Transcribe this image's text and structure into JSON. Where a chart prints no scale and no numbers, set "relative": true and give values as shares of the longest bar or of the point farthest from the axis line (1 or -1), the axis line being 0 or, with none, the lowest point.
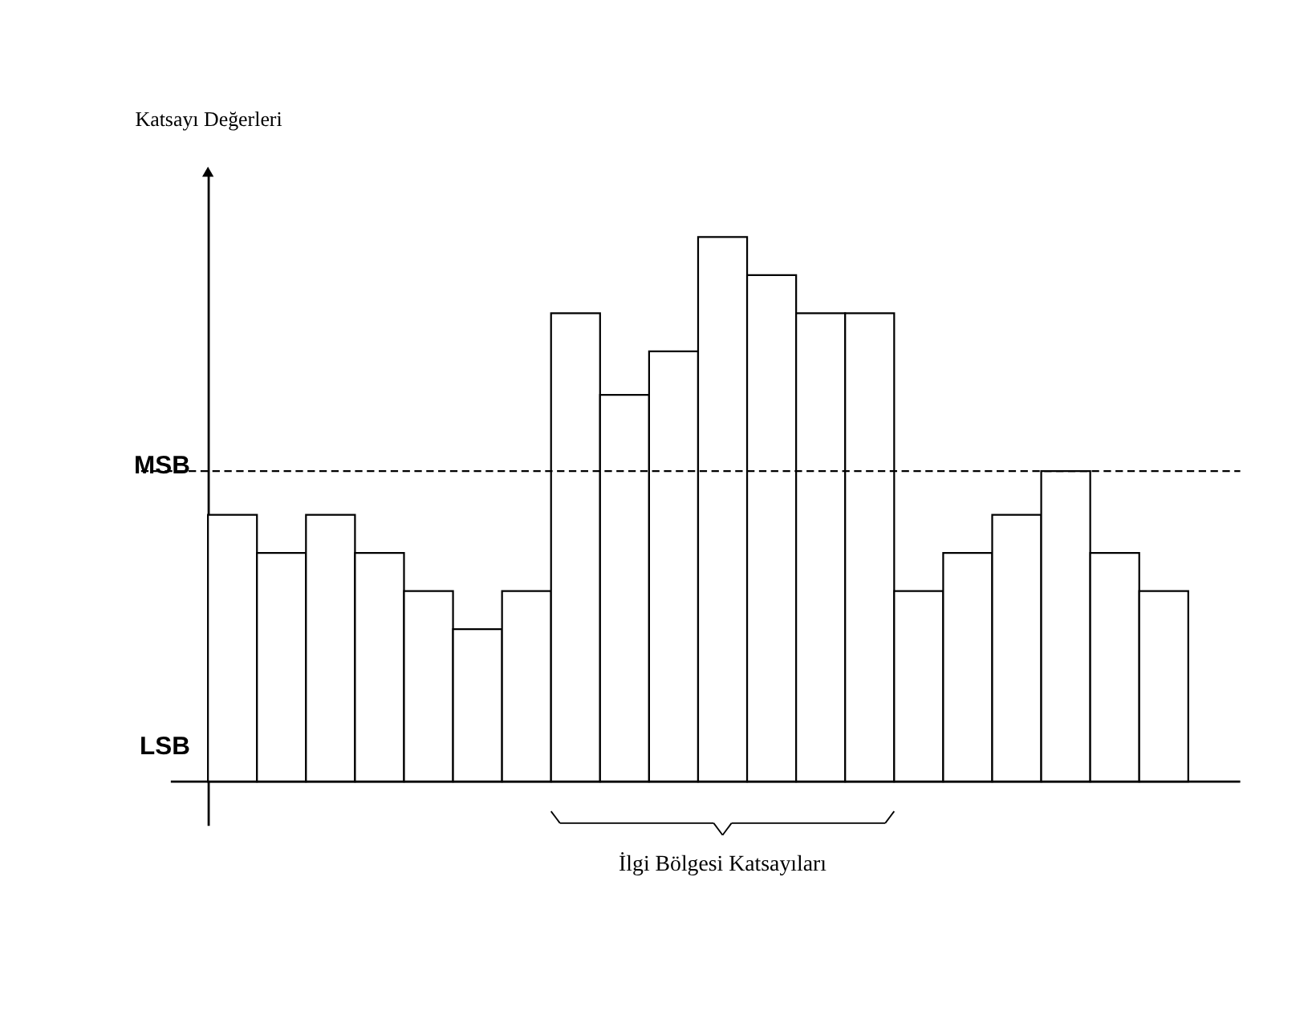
{
  "chart_data": {
    "type": "bar",
    "relative": true,
    "ylabel": "Katsayı Değerleri",
    "categories": [
      null,
      null,
      null,
      null,
      null,
      null,
      null,
      null,
      null,
      null,
      null,
      null,
      null,
      null,
      null,
      null,
      null,
      null,
      null,
      null
    ],
    "values": [
      0.49,
      0.42,
      0.49,
      0.42,
      0.35,
      0.28,
      0.35,
      0.86,
      0.71,
      0.79,
      1,
      0.93,
      0.86,
      0.86,
      0.35,
      0.42,
      0.49,
      0.57,
      0.42,
      0.35
    ],
    "color": "#ffffff",
    "ref_lines": [
      {
        "axis": "y",
        "value": 0.57,
        "color": "#000000",
        "line_style": "dashed"
      }
    ],
    "annotations": [
      "MSB",
      "LSB",
      "İlgi Bölgesi Katsayıları"
    ],
    "tick_labels": false,
    "grid": false
  }
}
